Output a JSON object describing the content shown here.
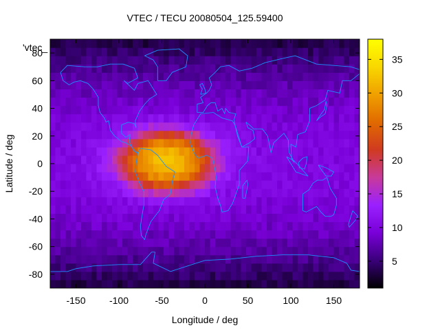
{
  "chart_data": {
    "type": "heatmap",
    "title": "VTEC / TECU 20080504_125.59400",
    "xlabel": "Longitude / deg",
    "ylabel": "Latitude / deg",
    "xlim": [
      -180,
      180
    ],
    "ylim": [
      -90,
      90
    ],
    "x_ticks": [
      -150,
      -100,
      -50,
      0,
      50,
      100,
      150
    ],
    "y_ticks": [
      -80,
      -60,
      -40,
      -20,
      0,
      20,
      40,
      60,
      80
    ],
    "colorbar": {
      "range": [
        1,
        38
      ],
      "ticks": [
        5,
        10,
        15,
        20,
        25,
        30,
        35
      ],
      "palette": [
        "#000000",
        "#3a007a",
        "#7a00d8",
        "#9a20ff",
        "#c83a9a",
        "#d03a20",
        "#e06a00",
        "#f0a000",
        "#f8d800",
        "#ffff00"
      ]
    },
    "legend_label": "'vtec_",
    "grid": {
      "lon_step_deg": 6,
      "lat_step_deg": 6
    },
    "features": {
      "background_level": 10,
      "anomaly": {
        "center_lon_deg": -45,
        "center_lat_deg": 2,
        "peak_value": 28,
        "lon_extent_deg": [
          -125,
          40
        ],
        "lat_extent_deg": [
          -30,
          30
        ]
      },
      "polar_low_level": 3,
      "overlay": "continent coastlines"
    },
    "overlay_color": "#1e90ff"
  }
}
